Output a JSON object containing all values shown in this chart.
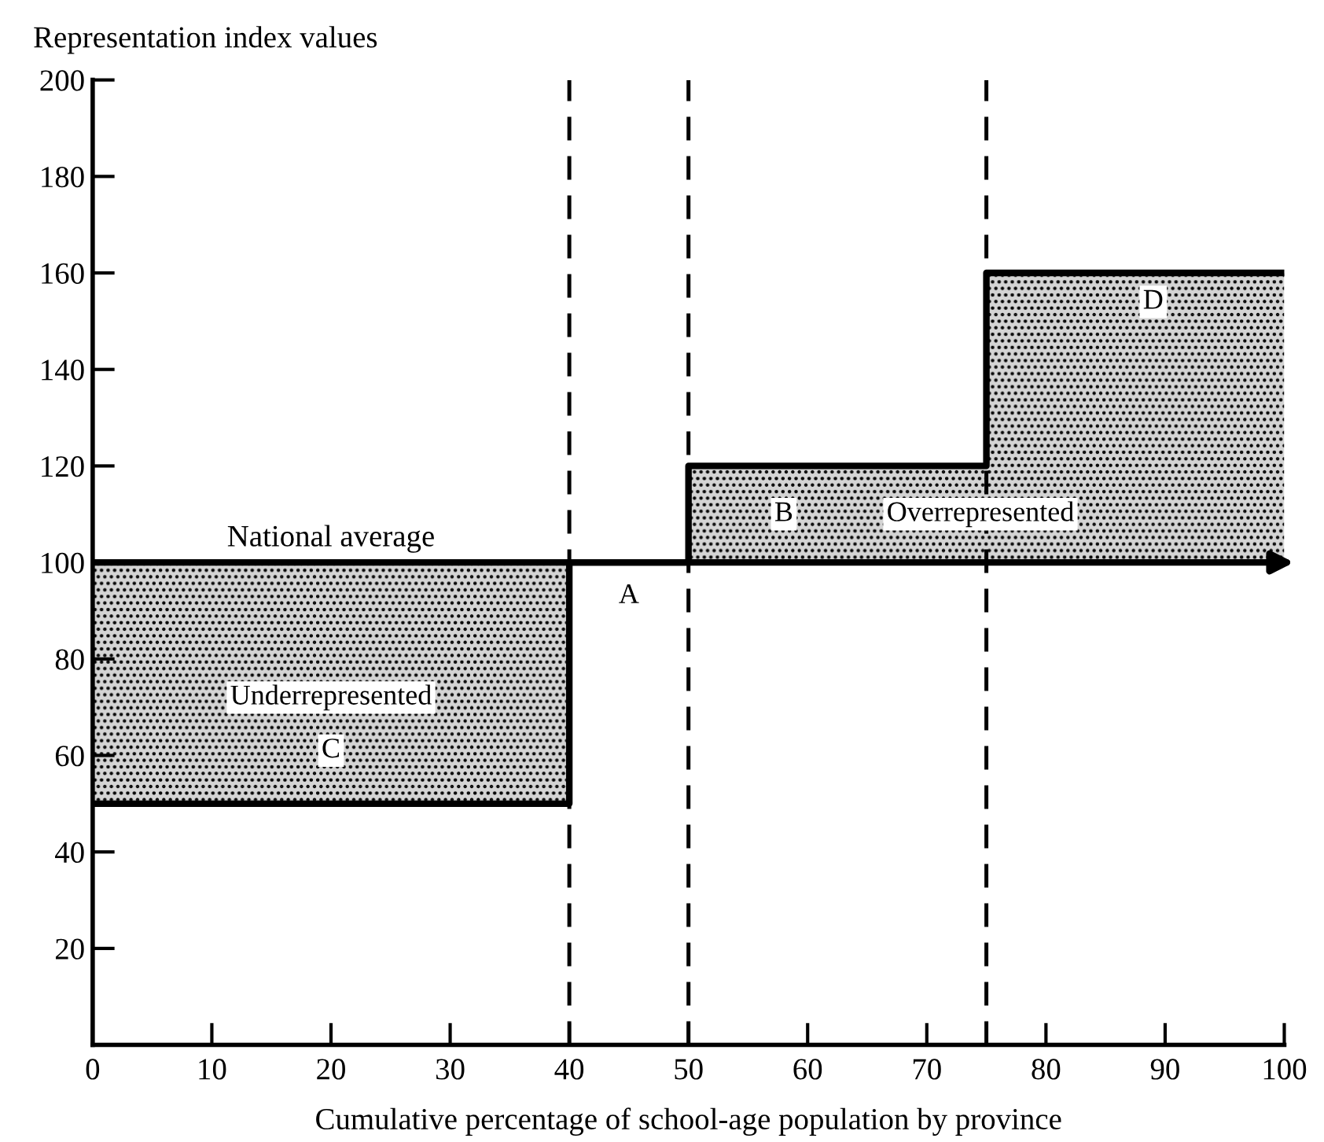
{
  "chart_data": {
    "type": "step",
    "ylabel": "Representation index values",
    "xlabel": "Cumulative percentage of school-age population by province",
    "x": [
      0,
      40,
      50,
      75,
      100
    ],
    "series": [
      {
        "color": "#000000",
        "values": [
          50,
          100,
          120,
          160,
          160
        ],
        "lower": [
          50,
          100,
          100,
          100,
          100
        ],
        "upper": [
          100,
          100,
          120,
          160,
          160
        ]
      }
    ],
    "xlim": [
      0,
      100
    ],
    "xticks": [
      0,
      10,
      20,
      30,
      40,
      50,
      60,
      70,
      80,
      90,
      100
    ],
    "ylim": [
      0,
      200
    ],
    "yticks": [
      20,
      40,
      60,
      80,
      100,
      120,
      140,
      160,
      180,
      200
    ],
    "grid": false,
    "ref_lines": [
      {
        "axis": "y",
        "value": 100,
        "label": "National average",
        "color": "#000000",
        "line_style": "solid"
      },
      {
        "axis": "x",
        "value": 40,
        "color": "#000000",
        "line_style": "dashed"
      },
      {
        "axis": "x",
        "value": 50,
        "color": "#000000",
        "line_style": "dashed"
      },
      {
        "axis": "x",
        "value": 75,
        "color": "#000000",
        "line_style": "dashed"
      }
    ],
    "annotations": [
      "Underrepresented",
      {
        "text": "C",
        "x": 20,
        "y": 61
      },
      {
        "text": "A",
        "x": 45,
        "y": 93
      },
      {
        "text": "B",
        "x": 58,
        "y": 110
      },
      "Overrepresented",
      {
        "text": "D",
        "x": 89,
        "y": 154
      }
    ]
  }
}
